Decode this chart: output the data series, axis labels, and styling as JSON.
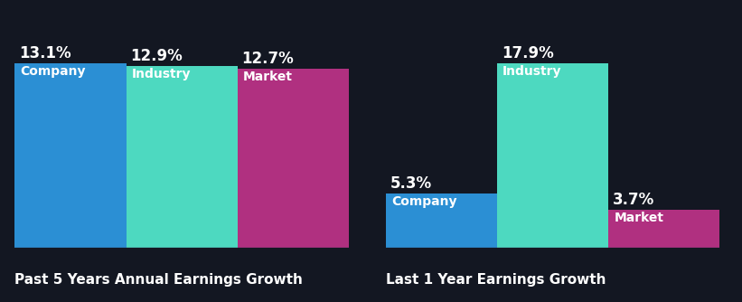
{
  "background_color": "#131722",
  "chart1": {
    "title": "Past 5 Years Annual Earnings Growth",
    "categories": [
      "Company",
      "Industry",
      "Market"
    ],
    "values": [
      13.1,
      12.9,
      12.7
    ],
    "colors": [
      "#2b8fd4",
      "#4dd9c0",
      "#b03080"
    ],
    "labels": [
      "13.1%",
      "12.9%",
      "12.7%"
    ]
  },
  "chart2": {
    "title": "Last 1 Year Earnings Growth",
    "categories": [
      "Company",
      "Industry",
      "Market"
    ],
    "values": [
      5.3,
      17.9,
      3.7
    ],
    "colors": [
      "#2b8fd4",
      "#4dd9c0",
      "#b03080"
    ],
    "labels": [
      "5.3%",
      "17.9%",
      "3.7%"
    ]
  },
  "bar_label_fontsize": 12,
  "category_label_fontsize": 10,
  "title_fontsize": 11,
  "text_color": "#ffffff",
  "bar_width": 1.0,
  "axis_line_color": "#3a3a5c"
}
